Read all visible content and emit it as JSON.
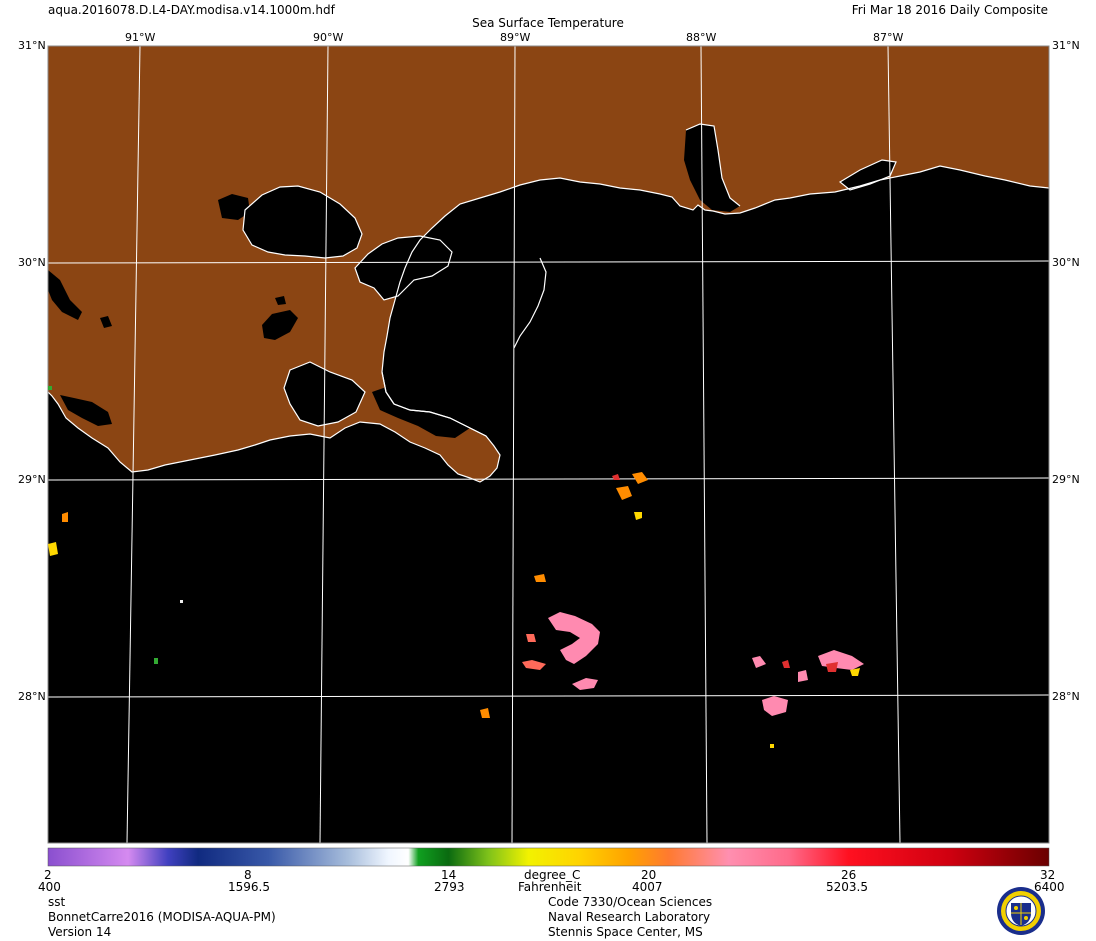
{
  "header": {
    "filename": "aqua.2016078.D.L4-DAY.modisa.v14.1000m.hdf",
    "date_label": "Fri Mar 18 2016 Daily Composite",
    "title": "Sea Surface Temperature"
  },
  "map": {
    "lat_labels": [
      "31°N",
      "30°N",
      "29°N",
      "28°N"
    ],
    "lon_labels": [
      "91°W",
      "90°W",
      "89°W",
      "88°W",
      "87°W"
    ],
    "colors": {
      "land": "#8B4513",
      "no_data": "#000000",
      "coast": "#ffffff",
      "grid": "#ffffff"
    }
  },
  "colorbar": {
    "celsius_ticks": [
      "2",
      "8",
      "14",
      "20",
      "26",
      "32"
    ],
    "fahrenheit_ticks": [
      "400",
      "1596.5",
      "2793",
      "4007",
      "5203.5",
      "6400"
    ],
    "unit_c": "degree_C",
    "unit_f": "Fahrenheit"
  },
  "footer": {
    "product": "sst",
    "dataset": "BonnetCarre2016 (MODISA-AQUA-PM)",
    "version": "Version 14",
    "org_line1": "Code 7330/Ocean Sciences",
    "org_line2": "Naval Research Laboratory",
    "org_line3": "Stennis Space Center, MS"
  },
  "logo": {
    "name": "Naval Research Laboratory seal"
  }
}
